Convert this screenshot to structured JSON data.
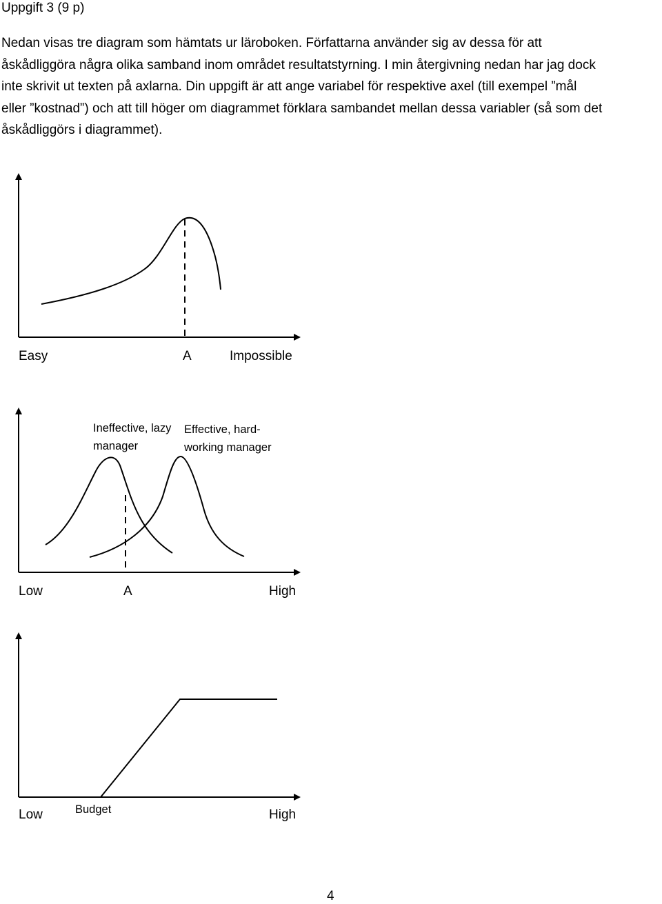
{
  "heading": "Uppgift 3 (9 p)",
  "paragraph_lines": [
    "Nedan visas tre diagram som hämtats ur läroboken. Författarna använder sig av dessa för att",
    "åskådliggöra några olika samband inom området resultatstyrning. I min återgivning nedan har jag dock",
    "inte skrivit ut texten på axlarna. Din uppgift är att ange variabel för respektive axel (till exempel ”mål",
    "eller ”kostnad”) och att till höger om diagrammet förklara sambandet mellan dessa variabler (så som det",
    "åskådliggörs i diagrammet)."
  ],
  "diagram1": {
    "x_left": "Easy",
    "x_mid": "A",
    "x_right": "Impossible"
  },
  "diagram2": {
    "curve_label_1": "Ineffective, lazy manager",
    "curve_label_2": "Effective, hard-working manager",
    "x_left": "Low",
    "x_mid": "A",
    "x_right": "High"
  },
  "diagram3": {
    "x_left": "Low",
    "x_mid": "Budget",
    "x_right": "High"
  },
  "page_number": "4"
}
